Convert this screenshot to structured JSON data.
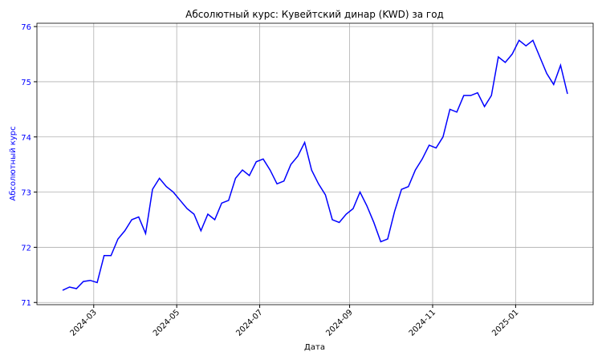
{
  "chart_data": {
    "type": "line",
    "title": "Абсолютный курс: Кувейтский динар (KWD) за год",
    "xlabel": "Дата",
    "ylabel": "Абсолютный курс",
    "x": [
      "2024-02",
      "2024-02",
      "2024-02",
      "2024-02",
      "2024-02",
      "2024-03",
      "2024-03",
      "2024-03",
      "2024-03",
      "2024-03",
      "2024-03",
      "2024-04",
      "2024-04",
      "2024-04",
      "2024-04",
      "2024-04",
      "2024-04",
      "2024-05",
      "2024-05",
      "2024-05",
      "2024-05",
      "2024-05",
      "2024-05",
      "2024-06",
      "2024-06",
      "2024-06",
      "2024-06",
      "2024-06",
      "2024-06",
      "2024-07",
      "2024-07",
      "2024-07",
      "2024-07",
      "2024-07",
      "2024-07",
      "2024-07",
      "2024-08",
      "2024-08",
      "2024-08",
      "2024-08",
      "2024-08",
      "2024-08",
      "2024-09",
      "2024-09",
      "2024-09",
      "2024-09",
      "2024-09",
      "2024-09",
      "2024-10",
      "2024-10",
      "2024-10",
      "2024-10",
      "2024-10",
      "2024-10",
      "2024-11",
      "2024-11",
      "2024-11",
      "2024-11",
      "2024-11",
      "2024-11",
      "2024-12",
      "2024-12",
      "2024-12",
      "2024-12",
      "2024-12",
      "2024-12",
      "2025-01",
      "2025-01",
      "2025-01",
      "2025-01",
      "2025-01",
      "2025-01",
      "2025-02",
      "2025-02"
    ],
    "series": [
      {
        "name": "Абсолютный курс",
        "color": "#0000ff",
        "values": [
          71.22,
          71.28,
          71.25,
          71.38,
          71.4,
          71.36,
          71.85,
          71.85,
          72.15,
          72.3,
          72.5,
          72.55,
          72.25,
          73.05,
          73.25,
          73.1,
          73.0,
          72.85,
          72.7,
          72.6,
          72.3,
          72.6,
          72.5,
          72.8,
          72.85,
          73.25,
          73.4,
          73.3,
          73.55,
          73.6,
          73.4,
          73.15,
          73.2,
          73.5,
          73.65,
          73.9,
          73.4,
          73.15,
          72.95,
          72.5,
          72.45,
          72.6,
          72.7,
          73.0,
          72.75,
          72.45,
          72.1,
          72.15,
          72.65,
          73.05,
          73.1,
          73.4,
          73.6,
          73.85,
          73.8,
          74.0,
          74.5,
          74.45,
          74.75,
          74.75,
          74.8,
          74.55,
          74.75,
          75.45,
          75.35,
          75.5,
          75.75,
          75.65,
          75.75,
          75.45,
          75.15,
          74.95,
          75.3,
          74.78
        ]
      }
    ],
    "xticks": [
      "2024-03",
      "2024-05",
      "2024-07",
      "2024-09",
      "2024-11",
      "2025-01"
    ],
    "ylim": [
      70.96,
      76.06
    ],
    "yticks": [
      71,
      72,
      73,
      74,
      75,
      76
    ],
    "grid": true
  }
}
